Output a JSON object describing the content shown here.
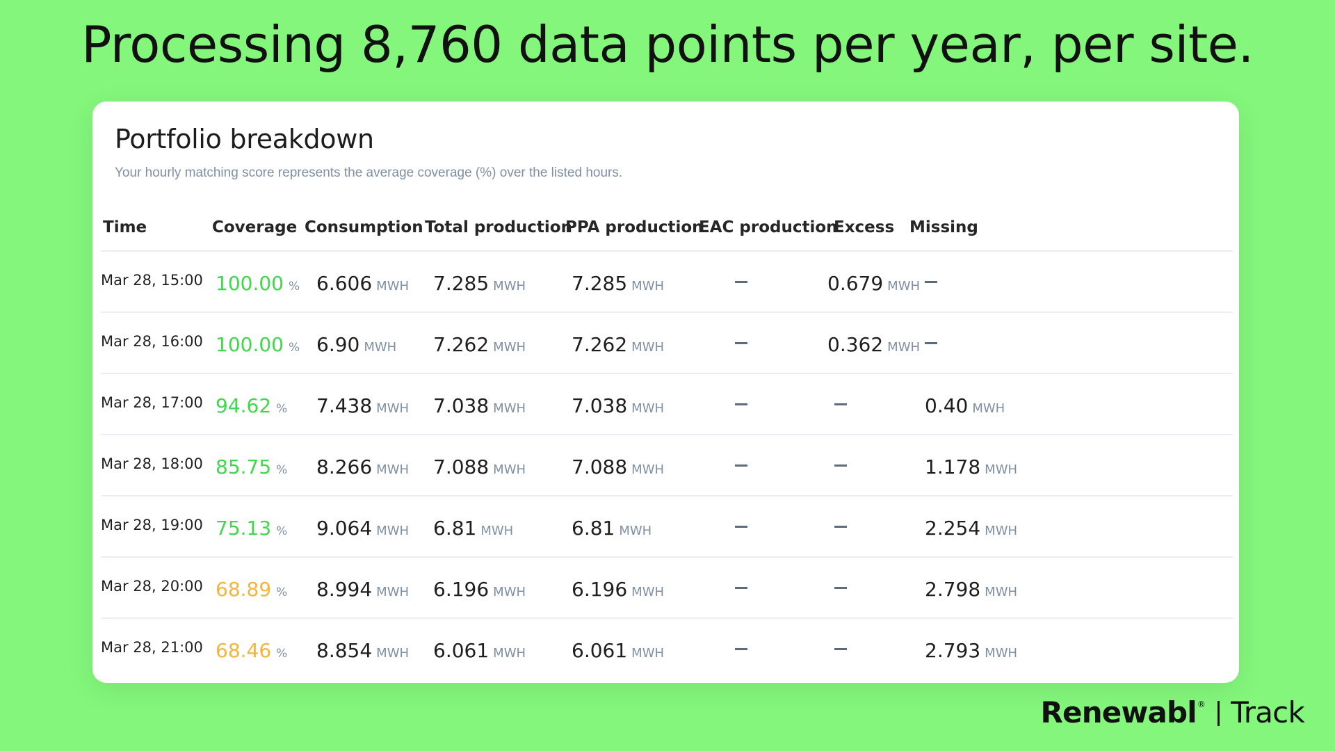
{
  "headline": "Processing 8,760 data points per year, per site.",
  "card": {
    "title": "Portfolio breakdown",
    "subtitle": "Your hourly matching score represents the average coverage (%) over the listed hours."
  },
  "columns": [
    "Time",
    "Coverage",
    "Consumption",
    "Total production",
    "PPA production",
    "EAC production",
    "Excess",
    "Missing"
  ],
  "units": {
    "energy": "MWH",
    "percent": "%"
  },
  "colors": {
    "background": "#83f67b",
    "coverage_high": "#3fd84a",
    "coverage_low": "#f4b43a"
  },
  "rows": [
    {
      "time": "Mar 28, 15:00",
      "coverage": "100.00",
      "consumption": "6.606",
      "total_production": "7.285",
      "ppa_production": "7.285",
      "eac_production": "–",
      "excess": "0.679",
      "missing": "–"
    },
    {
      "time": "Mar 28, 16:00",
      "coverage": "100.00",
      "consumption": "6.90",
      "total_production": "7.262",
      "ppa_production": "7.262",
      "eac_production": "–",
      "excess": "0.362",
      "missing": "–"
    },
    {
      "time": "Mar 28, 17:00",
      "coverage": "94.62",
      "consumption": "7.438",
      "total_production": "7.038",
      "ppa_production": "7.038",
      "eac_production": "–",
      "excess": "–",
      "missing": "0.40"
    },
    {
      "time": "Mar 28, 18:00",
      "coverage": "85.75",
      "consumption": "8.266",
      "total_production": "7.088",
      "ppa_production": "7.088",
      "eac_production": "–",
      "excess": "–",
      "missing": "1.178"
    },
    {
      "time": "Mar 28, 19:00",
      "coverage": "75.13",
      "consumption": "9.064",
      "total_production": "6.81",
      "ppa_production": "6.81",
      "eac_production": "–",
      "excess": "–",
      "missing": "2.254"
    },
    {
      "time": "Mar 28, 20:00",
      "coverage": "68.89",
      "consumption": "8.994",
      "total_production": "6.196",
      "ppa_production": "6.196",
      "eac_production": "–",
      "excess": "–",
      "missing": "2.798"
    },
    {
      "time": "Mar 28, 21:00",
      "coverage": "68.46",
      "consumption": "8.854",
      "total_production": "6.061",
      "ppa_production": "6.061",
      "eac_production": "–",
      "excess": "–",
      "missing": "2.793"
    }
  ],
  "brand": {
    "name": "Renewabl",
    "registered": "®",
    "product": "Track"
  }
}
